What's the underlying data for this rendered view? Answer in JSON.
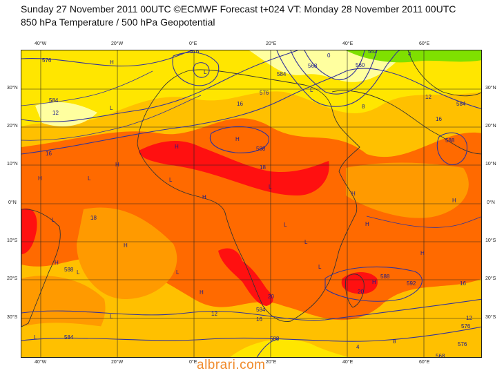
{
  "header": {
    "line1": "Sunday 27 November 2011 00UTC ©ECMWF Forecast t+024 VT: Monday 28 November 2011 00UTC",
    "line2": "850 hPa Temperature / 500 hPa Geopotential"
  },
  "map": {
    "lon_ticks": [
      {
        "value": -40,
        "label": "40°W"
      },
      {
        "value": -20,
        "label": "20°W"
      },
      {
        "value": 0,
        "label": "0°E"
      },
      {
        "value": 20,
        "label": "20°E"
      },
      {
        "value": 40,
        "label": "40°E"
      },
      {
        "value": 60,
        "label": "60°E"
      }
    ],
    "lat_ticks": [
      {
        "value": 30,
        "label": "30°N"
      },
      {
        "value": 20,
        "label": "20°N"
      },
      {
        "value": 10,
        "label": "10°N"
      },
      {
        "value": 0,
        "label": "0°N"
      },
      {
        "value": -10,
        "label": "10°S"
      },
      {
        "value": -20,
        "label": "20°S"
      },
      {
        "value": -30,
        "label": "30°S"
      }
    ],
    "colors": {
      "pale_yellow": "#ffff9f",
      "yellow": "#ffe600",
      "gold": "#ffc000",
      "orange": "#ff9a00",
      "deep_orange": "#ff6a00",
      "red": "#ff1010",
      "green": "#7fe000",
      "contour_blue": "#333399"
    },
    "temperature_labels": [
      "12",
      "16",
      "16",
      "16",
      "18",
      "18",
      "20",
      "20",
      "16",
      "12",
      "4",
      "8",
      "12",
      "8",
      "4",
      "12",
      "0",
      "16"
    ],
    "geopotential_labels": [
      "576",
      "576",
      "584",
      "588",
      "584",
      "552",
      "560",
      "568",
      "576",
      "588",
      "584",
      "588",
      "592",
      "588",
      "584",
      "576",
      "576",
      "568",
      "584",
      "588"
    ],
    "pressure_markers": [
      "H",
      "L",
      "L",
      "H",
      "L",
      "H",
      "L",
      "H",
      "H",
      "L",
      "H",
      "L",
      "H",
      "L",
      "H",
      "H",
      "L",
      "L",
      "H",
      "L",
      "L",
      "H",
      "L",
      "H",
      "L",
      "H",
      "H",
      "L"
    ]
  },
  "watermark": "albrari.com"
}
